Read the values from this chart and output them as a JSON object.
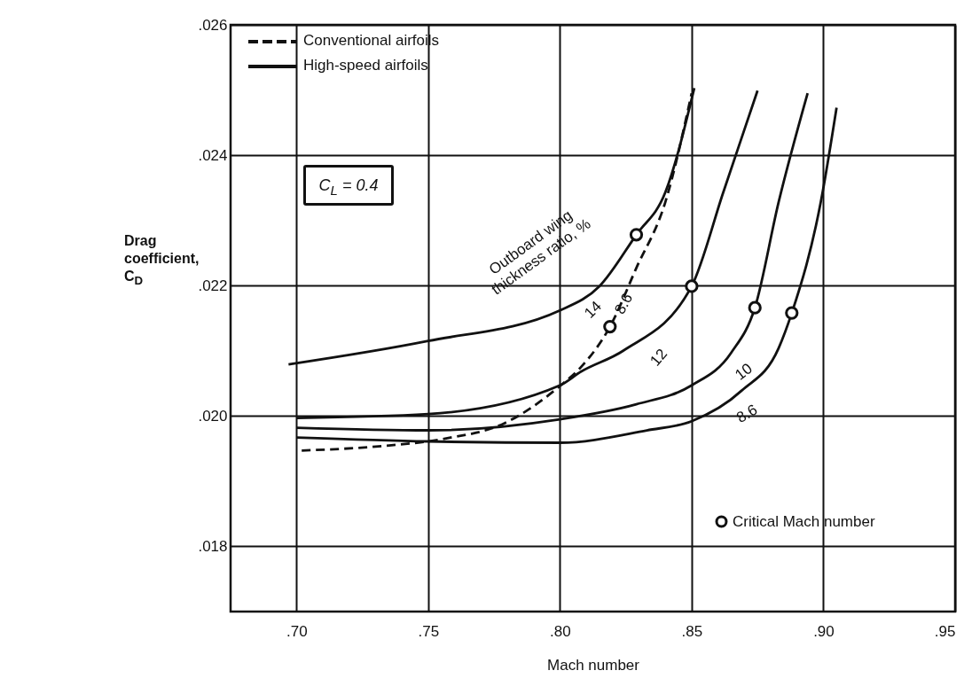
{
  "chart_data": {
    "type": "line",
    "xlabel": "Mach number",
    "ylabel": "Drag coefficient, C$_{D}$",
    "xlim": [
      0.675,
      0.95
    ],
    "ylim": [
      0.017,
      0.026
    ],
    "xticks": [
      {
        "value": 0.7,
        "label": ".70"
      },
      {
        "value": 0.75,
        "label": ".75"
      },
      {
        "value": 0.8,
        "label": ".80"
      },
      {
        "value": 0.85,
        "label": ".85"
      },
      {
        "value": 0.9,
        "label": ".90"
      },
      {
        "value": 0.95,
        "label": ".95"
      }
    ],
    "yticks": [
      {
        "value": 0.018,
        "label": ".018"
      },
      {
        "value": 0.02,
        "label": ".020"
      },
      {
        "value": 0.022,
        "label": ".022"
      },
      {
        "value": 0.024,
        "label": ".024"
      },
      {
        "value": 0.026,
        "label": ".026"
      }
    ],
    "grid": true,
    "legend": "bottom right",
    "annotations": [
      "Conventional airfoils",
      "High-speed airfoils",
      "Outboard wing thickness ratio, %",
      "C$_{L}$ = 0.4"
    ],
    "series": [
      {
        "name": "14",
        "color": "#111111",
        "line_style": "solid",
        "x": [
          0.697,
          0.75,
          0.8,
          0.815,
          0.829,
          0.84,
          0.851
        ],
        "values": [
          0.02079,
          0.02115,
          0.02162,
          0.02199,
          0.02278,
          0.02343,
          0.02503
        ]
      },
      {
        "name": "8.6",
        "color": "#111111",
        "line_style": "dashed",
        "x": [
          0.702,
          0.733,
          0.756,
          0.779,
          0.8,
          0.808,
          0.819,
          0.829,
          0.84,
          0.85
        ],
        "values": [
          0.01947,
          0.01954,
          0.01965,
          0.01989,
          0.02046,
          0.02075,
          0.02137,
          0.02227,
          0.02328,
          0.02495
        ]
      },
      {
        "name": "12",
        "color": "#111111",
        "line_style": "solid",
        "x": [
          0.7,
          0.75,
          0.8,
          0.808,
          0.824,
          0.85,
          0.862,
          0.875
        ],
        "values": [
          0.01997,
          0.02003,
          0.02047,
          0.02068,
          0.021,
          0.02199,
          0.02343,
          0.02499
        ]
      },
      {
        "name": "10",
        "color": "#111111",
        "line_style": "solid",
        "x": [
          0.7,
          0.75,
          0.8,
          0.829,
          0.85,
          0.865,
          0.874,
          0.883,
          0.894
        ],
        "values": [
          0.01982,
          0.01978,
          0.01995,
          0.02018,
          0.02047,
          0.02097,
          0.02166,
          0.02328,
          0.02495
        ]
      },
      {
        "name": "8.6",
        "color": "#111111",
        "line_style": "solid",
        "x": [
          0.7,
          0.75,
          0.8,
          0.833,
          0.85,
          0.869,
          0.883,
          0.888,
          0.899,
          0.905
        ],
        "values": [
          0.01967,
          0.01961,
          0.01959,
          0.01978,
          0.01992,
          0.02039,
          0.02104,
          0.02158,
          0.02328,
          0.02473
        ]
      },
      {
        "name": "Critical Mach number",
        "type": "scatter",
        "marker": "circle",
        "color": "#111111",
        "x": [
          0.829,
          0.819,
          0.85,
          0.874,
          0.888
        ],
        "values": [
          0.02278,
          0.02137,
          0.02199,
          0.02166,
          0.02158
        ]
      }
    ]
  }
}
